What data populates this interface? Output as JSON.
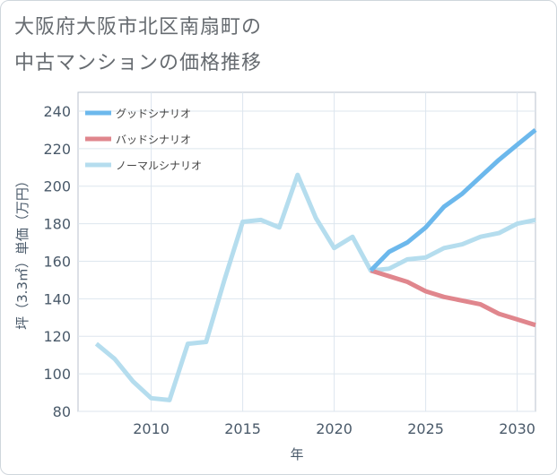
{
  "title": {
    "line1": "大阪府大阪市北区南扇町の",
    "line2": "中古マンションの価格推移"
  },
  "chart_data": {
    "type": "line",
    "xlabel": "年",
    "ylabel": "坪（3.3㎡）単価（万円）",
    "xlim": [
      2006,
      2031
    ],
    "ylim": [
      80,
      250
    ],
    "xticks": [
      2010,
      2015,
      2020,
      2025,
      2030
    ],
    "yticks": [
      80,
      100,
      120,
      140,
      160,
      180,
      200,
      220,
      240
    ],
    "grid": true,
    "legend_position": "top-left",
    "series": [
      {
        "name": "グッドシナリオ",
        "color": "#6cb8ec",
        "x": [
          2022,
          2023,
          2024,
          2025,
          2026,
          2027,
          2028,
          2029,
          2030,
          2031
        ],
        "values": [
          155,
          165,
          170,
          178,
          189,
          196,
          205,
          214,
          222,
          230
        ]
      },
      {
        "name": "バッドシナリオ",
        "color": "#e0868d",
        "x": [
          2022,
          2023,
          2024,
          2025,
          2026,
          2027,
          2028,
          2029,
          2030,
          2031
        ],
        "values": [
          155,
          152,
          149,
          144,
          141,
          139,
          137,
          132,
          129,
          126
        ]
      },
      {
        "name": "ノーマルシナリオ",
        "color": "#b5ddee",
        "x": [
          2007,
          2008,
          2009,
          2010,
          2011,
          2012,
          2013,
          2014,
          2015,
          2016,
          2017,
          2018,
          2019,
          2020,
          2021,
          2022,
          2023,
          2024,
          2025,
          2026,
          2027,
          2028,
          2029,
          2030,
          2031
        ],
        "values": [
          116,
          108,
          96,
          87,
          86,
          116,
          117,
          150,
          181,
          182,
          178,
          206,
          183,
          167,
          173,
          155,
          156,
          161,
          162,
          167,
          169,
          173,
          175,
          180,
          182
        ]
      }
    ]
  }
}
